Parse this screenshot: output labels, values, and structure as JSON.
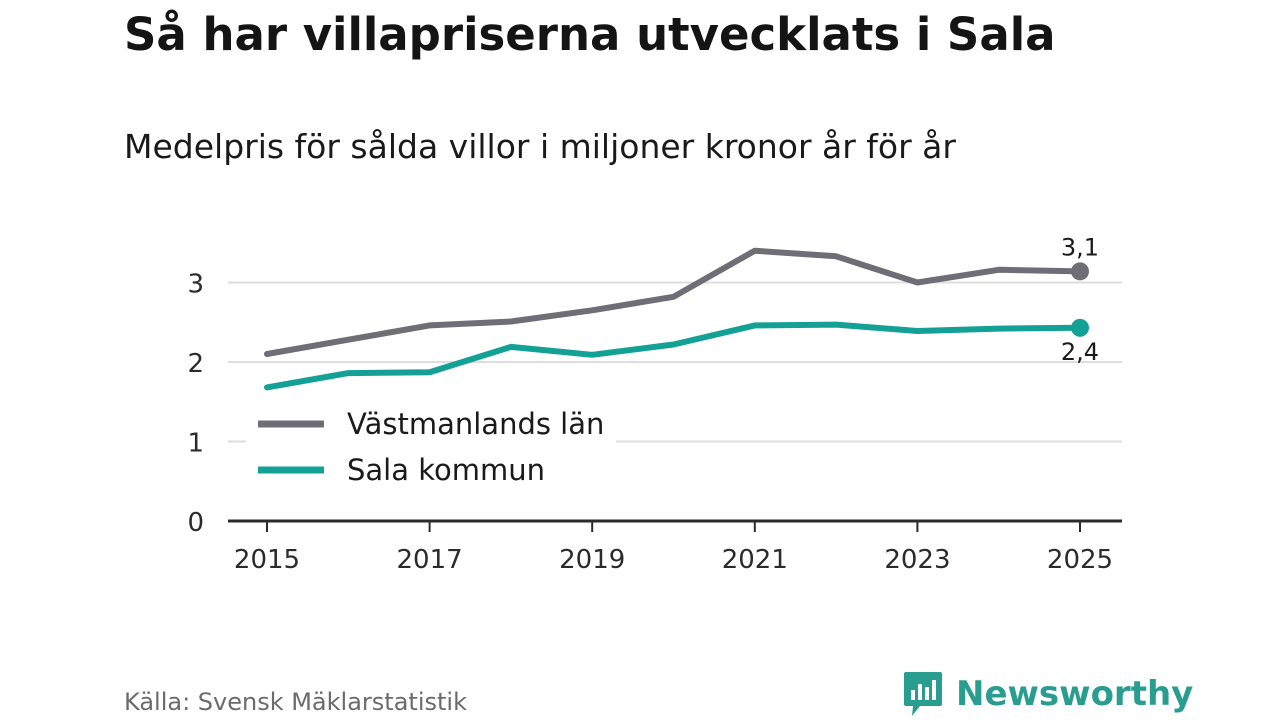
{
  "header": {
    "title": "Så har villapriserna utvecklats i Sala",
    "subtitle": "Medelpris för sålda villor i miljoner kronor år för år"
  },
  "footer": {
    "source": "Källa: Svensk Mäklarstatistik",
    "brand": "Newsworthy"
  },
  "colors": {
    "vastmanland": "#6f6e76",
    "sala": "#13a196",
    "grid": "#dedede",
    "axis": "#2b2b2b",
    "brand": "#2a9d91"
  },
  "chart_data": {
    "type": "line",
    "title": "Så har villapriserna utvecklats i Sala",
    "subtitle": "Medelpris för sålda villor i miljoner kronor år för år",
    "xlabel": "",
    "ylabel": "",
    "x": [
      2015,
      2016,
      2017,
      2018,
      2019,
      2020,
      2021,
      2022,
      2023,
      2024,
      2025
    ],
    "xticks": [
      "2015",
      "2017",
      "2019",
      "2021",
      "2023",
      "2025"
    ],
    "yticks": [
      "0",
      "1",
      "2",
      "3"
    ],
    "ylim": [
      0,
      3.5
    ],
    "grid": true,
    "legend_position": "bottom-left",
    "series": [
      {
        "name": "Västmanlands län",
        "color": "#6f6e76",
        "values": [
          2.1,
          2.28,
          2.46,
          2.51,
          2.65,
          2.82,
          3.4,
          3.33,
          3.0,
          3.16,
          3.14
        ],
        "end_label": "3,1"
      },
      {
        "name": "Sala kommun",
        "color": "#13a196",
        "values": [
          1.68,
          1.86,
          1.87,
          2.19,
          2.09,
          2.22,
          2.46,
          2.47,
          2.39,
          2.42,
          2.43
        ],
        "end_label": "2,4"
      }
    ]
  }
}
